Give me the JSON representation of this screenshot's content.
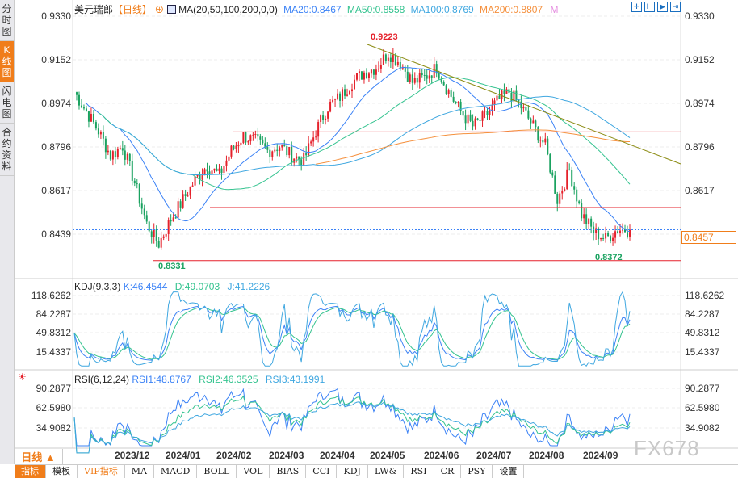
{
  "sidebar": {
    "items": [
      {
        "label": "分时图"
      },
      {
        "label": "K线图",
        "active": true
      },
      {
        "label": "闪电图"
      },
      {
        "label": "合约资料"
      }
    ]
  },
  "header": {
    "symbol": "美元瑞郎",
    "period": "【日线】",
    "ma_label": "MA(20,50,100,200,0,0)",
    "ma20": "MA20:0.8467",
    "ma50": "MA50:0.8558",
    "ma100": "MA100:0.8769",
    "ma200": "MA200:0.8807",
    "m": "M"
  },
  "colors": {
    "ma20": "#3b82f6",
    "ma50": "#34c38f",
    "ma100": "#3fa7e0",
    "ma200": "#f5903d",
    "up": "#e5212b",
    "down": "#1aa260",
    "accent": "#f07d1a"
  },
  "price_axis": [
    "0.9330",
    "0.9152",
    "0.8974",
    "0.8796",
    "0.8617",
    "0.8439"
  ],
  "current_price": "0.8457",
  "annotations": {
    "high": "0.9223",
    "low": "0.8331",
    "low2": "0.8372"
  },
  "kdj": {
    "label": "KDJ(9,3,3)",
    "k": "K:46.4544",
    "d": "D:49.0703",
    "j": "J:41.2226",
    "axis": [
      "118.6262",
      "84.2287",
      "49.8312",
      "15.4337"
    ]
  },
  "rsi": {
    "label": "RSI(6,12,24)",
    "r1": "RSI1:48.8767",
    "r2": "RSI2:46.3525",
    "r3": "RSI3:43.1991",
    "axis": [
      "90.2877",
      "62.5980",
      "34.9082"
    ]
  },
  "dates": [
    "2023/12",
    "2024/01",
    "2024/02",
    "2024/03",
    "2024/04",
    "2024/05",
    "2024/06",
    "2024/07",
    "2024/08",
    "2024/09"
  ],
  "period_button": "日线 ▲",
  "tabs": [
    "指标",
    "模板",
    "VIP指标",
    "MA",
    "MACD",
    "BOLL",
    "VOL",
    "BIAS",
    "CCI",
    "KDJ",
    "LW&",
    "RSI",
    "CR",
    "PSY",
    "设置"
  ],
  "watermark": "FX678",
  "chart_data": {
    "type": "candlestick",
    "weekly_closes": [
      0.902,
      0.894,
      0.886,
      0.876,
      0.88,
      0.865,
      0.848,
      0.84,
      0.85,
      0.858,
      0.866,
      0.872,
      0.868,
      0.878,
      0.884,
      0.882,
      0.878,
      0.88,
      0.876,
      0.874,
      0.886,
      0.896,
      0.9,
      0.906,
      0.91,
      0.912,
      0.918,
      0.914,
      0.906,
      0.908,
      0.912,
      0.902,
      0.894,
      0.888,
      0.892,
      0.898,
      0.902,
      0.896,
      0.888,
      0.88,
      0.858,
      0.87,
      0.852,
      0.845,
      0.842,
      0.846,
      0.8457
    ],
    "ylim": [
      0.83,
      0.933
    ],
    "levels": [
      0.8857,
      0.8548,
      0.8331
    ]
  }
}
